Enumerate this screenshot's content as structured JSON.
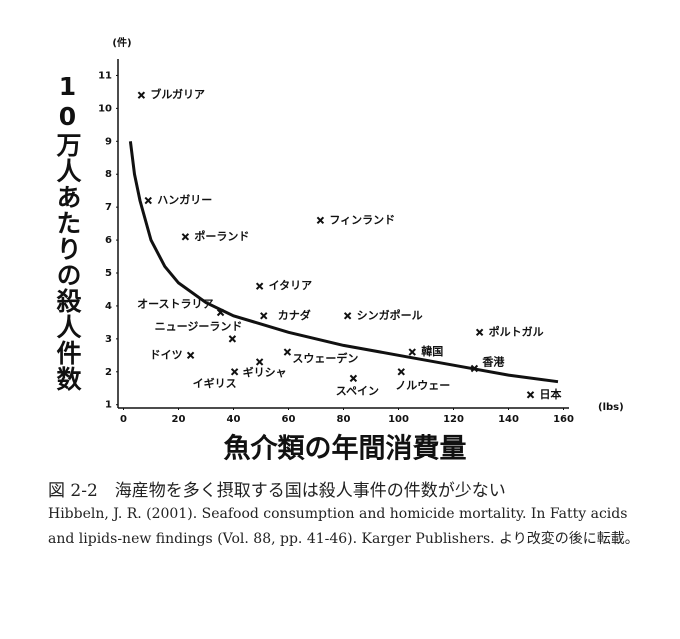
{
  "chart_data": {
    "type": "scatter",
    "y_label": "10万人あたりの殺人件数",
    "y_unit": "(件)",
    "x_label": "魚介類の年間消費量",
    "x_unit": "(lbs)",
    "xlim": [
      -2,
      162
    ],
    "ylim": [
      0.9,
      11.5
    ],
    "xticks": [
      0,
      20,
      40,
      60,
      80,
      100,
      120,
      140,
      160
    ],
    "yticks": [
      1,
      2,
      3,
      4,
      5,
      6,
      7,
      8,
      9,
      10,
      11
    ],
    "labels": [
      "ブルガリア",
      "ハンガリー",
      "ポーランド",
      "フィンランド",
      "イタリア",
      "オーストラリア",
      "カナダ",
      "シンガポール",
      "ニュージーランド",
      "ポルトガル",
      "ドイツ",
      "スウェーデン",
      "韓国",
      "香港",
      "ギリシャ",
      "イギリス",
      "ノルウェー",
      "スペイン",
      "日本"
    ],
    "x": [
      6.5,
      9,
      22.5,
      71.6,
      49.5,
      35.3,
      51,
      81.5,
      39.6,
      129.5,
      24.4,
      59.6,
      105,
      127.6,
      49.5,
      40.4,
      101,
      83.6,
      148
    ],
    "y": [
      10.4,
      7.2,
      6.1,
      6.6,
      4.6,
      3.8,
      3.7,
      3.7,
      3.0,
      3.2,
      2.5,
      2.6,
      2.6,
      2.1,
      2.3,
      2.0,
      2.0,
      1.8,
      1.3
    ],
    "curve": {
      "x": [
        2.5,
        4,
        6,
        10,
        15,
        20,
        30,
        40,
        60,
        80,
        100,
        120,
        140,
        158
      ],
      "y": [
        9.0,
        8.0,
        7.2,
        6.0,
        5.2,
        4.7,
        4.1,
        3.7,
        3.2,
        2.8,
        2.5,
        2.2,
        1.9,
        1.7
      ]
    },
    "color": "#111111"
  },
  "figure": {
    "caption": "図 2-2　海産物を多く摂取する国は殺人事件の件数が少ない",
    "citation": "Hibbeln, J. R. (2001). Seafood consumption and homicide mortality. In Fatty acids and lipids-new findings (Vol. 88, pp. 41-46). Karger Publishers. より改変の後に転載。"
  }
}
